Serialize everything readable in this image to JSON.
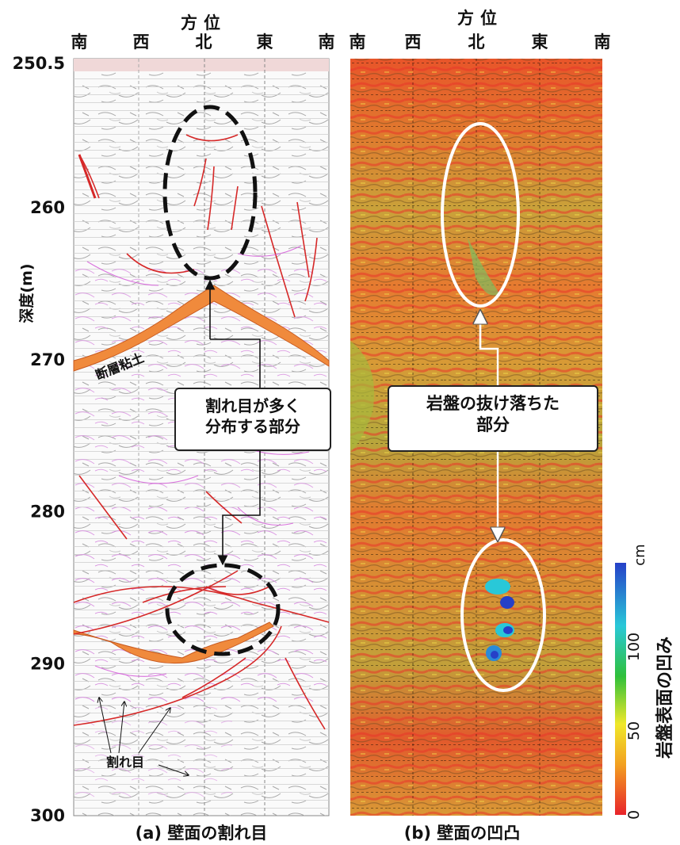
{
  "figure": {
    "direction_title": "方位",
    "directions": [
      "南",
      "西",
      "北",
      "東",
      "南"
    ],
    "depth_axis": {
      "label": "深度(m)",
      "ticks": [
        "250.5",
        "260",
        "270",
        "280",
        "290",
        "300"
      ],
      "tick_values": [
        250.5,
        260,
        270,
        280,
        290,
        300
      ],
      "range": [
        250.5,
        300
      ]
    },
    "panel_a": {
      "caption": "(a) 壁面の割れ目",
      "fault_clay_label": "断層粘土",
      "fracture_label": "割れ目",
      "callout_line1": "割れ目が多く",
      "callout_line2": "分布する部分",
      "fracture_zone_depths": [
        260,
        287
      ]
    },
    "panel_b": {
      "caption": "(b) 壁面の凹凸",
      "callout_line1": "岩盤の抜け落ちた",
      "callout_line2": "部分",
      "dropout_zone_depths": [
        261,
        287
      ]
    },
    "colorbar": {
      "label": "岩盤表面の凹み",
      "unit": "cm",
      "ticks": [
        "0",
        "50",
        "100"
      ],
      "tick_values": [
        0,
        50,
        100
      ],
      "range": [
        0,
        150
      ],
      "colors": [
        "#e8232a",
        "#f2a020",
        "#f0e82a",
        "#2fc03a",
        "#29c8d8",
        "#2640c8"
      ]
    },
    "colors": {
      "fracture_red": "#d62828",
      "fault_clay_orange": "#f08a3c",
      "joint_magenta": "#d45ad8",
      "ellipse_black": "#111111",
      "ellipse_white": "#ffffff"
    }
  }
}
